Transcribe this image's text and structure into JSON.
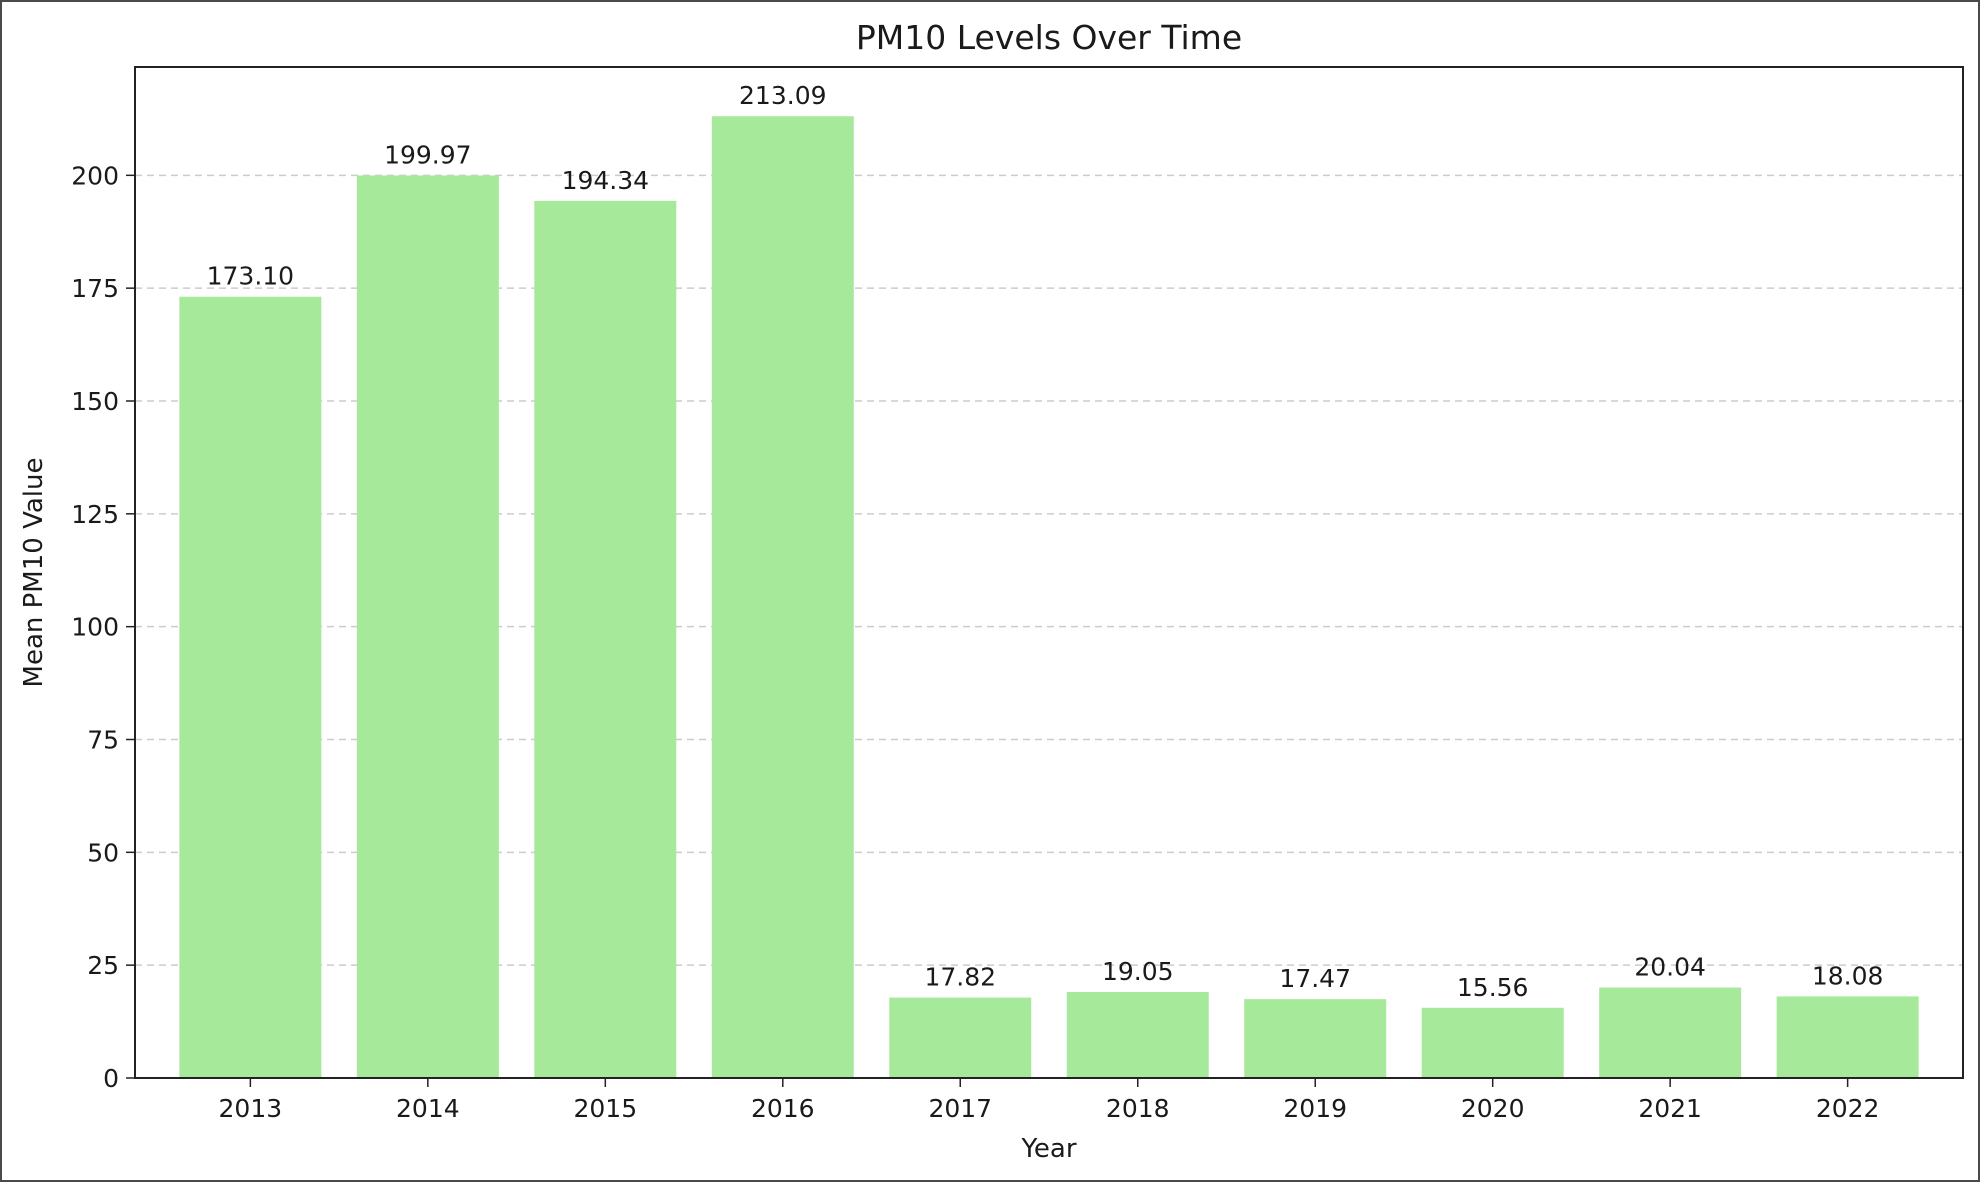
{
  "chart_data": {
    "type": "bar",
    "title": "PM10 Levels Over Time",
    "xlabel": "Year",
    "ylabel": "Mean PM10 Value",
    "categories": [
      "2013",
      "2014",
      "2015",
      "2016",
      "2017",
      "2018",
      "2019",
      "2020",
      "2021",
      "2022"
    ],
    "values": [
      173.1,
      199.97,
      194.34,
      213.09,
      17.82,
      19.05,
      17.47,
      15.56,
      20.04,
      18.08
    ],
    "value_labels": [
      "173.10",
      "199.97",
      "194.34",
      "213.09",
      "17.82",
      "19.05",
      "17.47",
      "15.56",
      "20.04",
      "18.08"
    ],
    "ylim": [
      0,
      224
    ],
    "yticks": [
      0,
      25,
      50,
      75,
      100,
      125,
      150,
      175,
      200
    ],
    "grid": "y-dashed",
    "bar_color": "#a6e99a",
    "grid_color": "#cccccc"
  }
}
